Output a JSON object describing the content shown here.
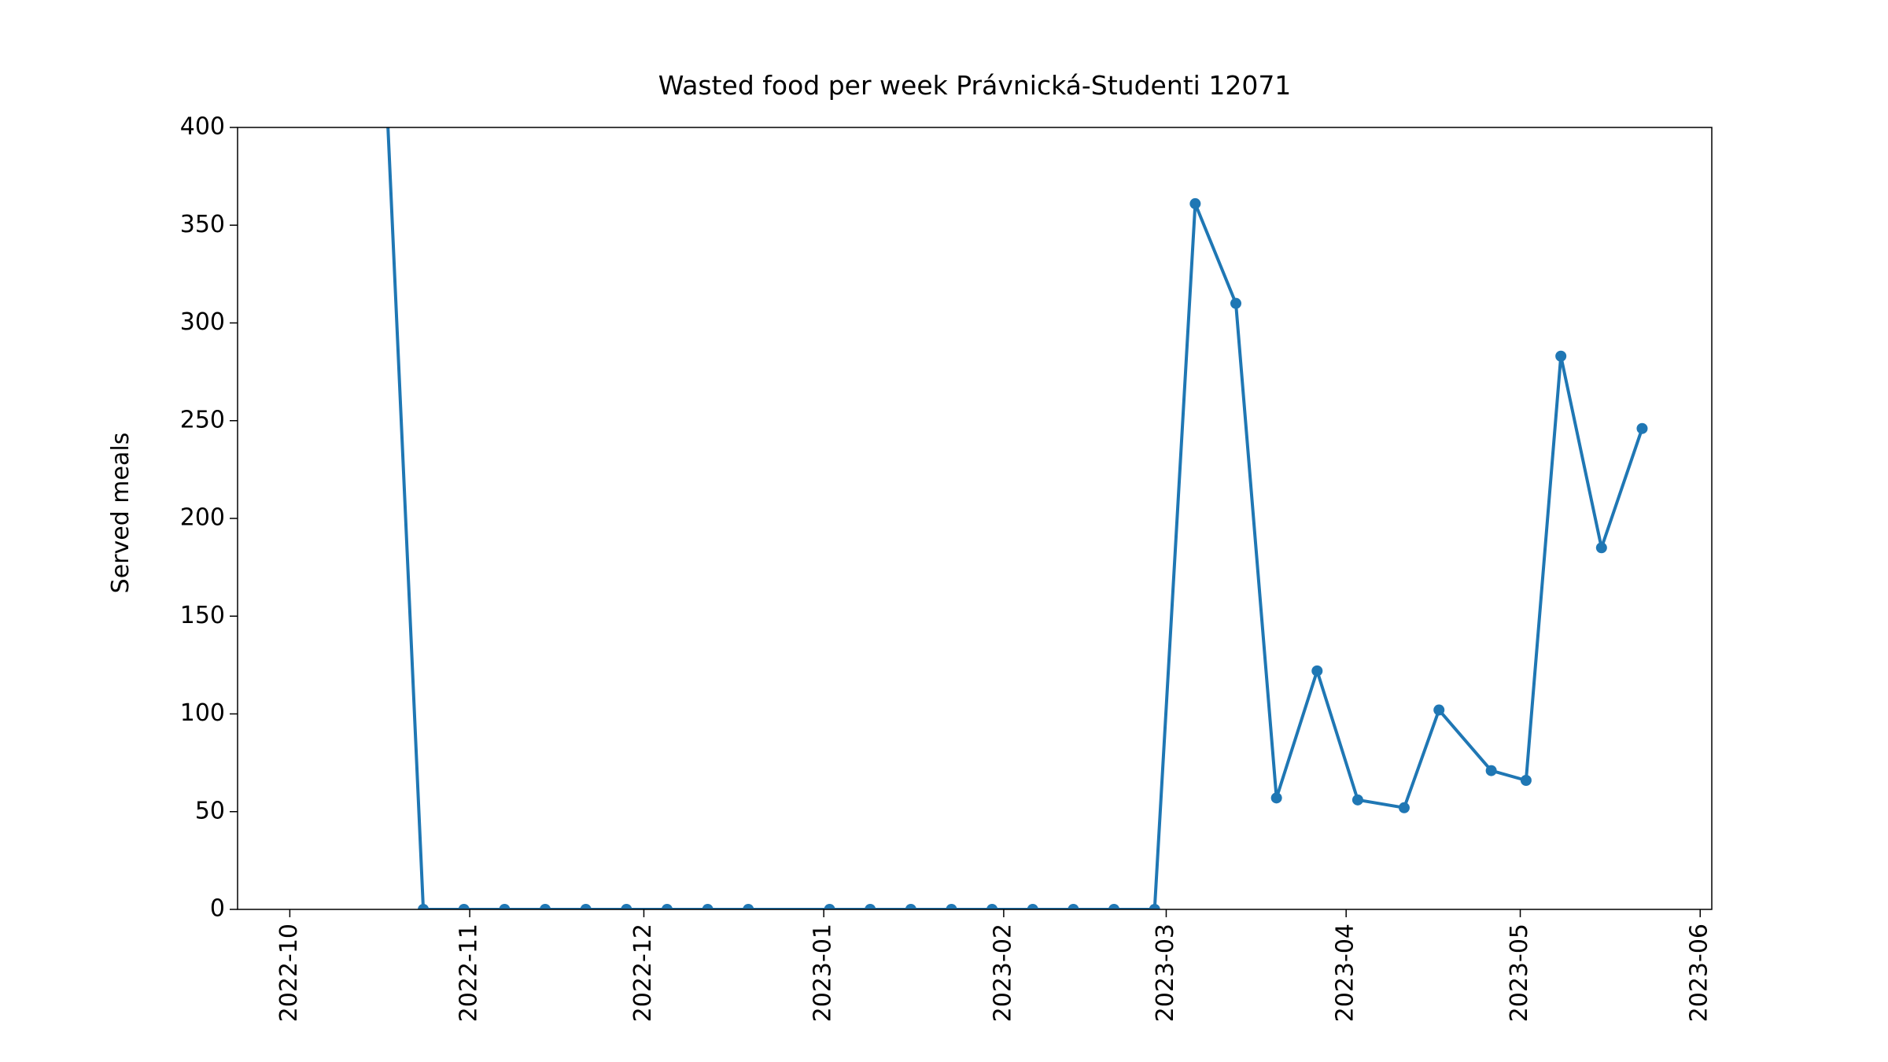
{
  "chart_data": {
    "type": "line",
    "title": "Wasted food per week Právnická-Studenti 12071",
    "y_label": "Served meals",
    "color": "#1f77b4",
    "x": [
      "2022-10-17",
      "2022-10-24",
      "2022-10-31",
      "2022-11-07",
      "2022-11-14",
      "2022-11-21",
      "2022-11-28",
      "2022-12-05",
      "2022-12-12",
      "2022-12-19",
      "2023-01-02",
      "2023-01-09",
      "2023-01-16",
      "2023-01-23",
      "2023-01-30",
      "2023-02-06",
      "2023-02-13",
      "2023-02-20",
      "2023-02-27",
      "2023-03-06",
      "2023-03-13",
      "2023-03-20",
      "2023-03-27",
      "2023-04-03",
      "2023-04-11",
      "2023-04-17",
      "2023-04-26",
      "2023-05-02",
      "2023-05-08",
      "2023-05-15",
      "2023-05-22"
    ],
    "values": [
      460,
      0,
      0,
      0,
      0,
      0,
      0,
      0,
      0,
      0,
      0,
      0,
      0,
      0,
      0,
      0,
      0,
      0,
      0,
      361,
      310,
      57,
      122,
      56,
      52,
      102,
      71,
      66,
      283,
      185,
      246
    ],
    "xlim": [
      "2022-09-22",
      "2023-06-03"
    ],
    "xticks": [
      "2022-10",
      "2022-11",
      "2022-12",
      "2023-01",
      "2023-02",
      "2023-03",
      "2023-04",
      "2023-05",
      "2023-06"
    ],
    "ylim": [
      0,
      400
    ],
    "yticks": [
      0,
      50,
      100,
      150,
      200,
      250,
      300,
      350,
      400
    ],
    "grid": false
  }
}
